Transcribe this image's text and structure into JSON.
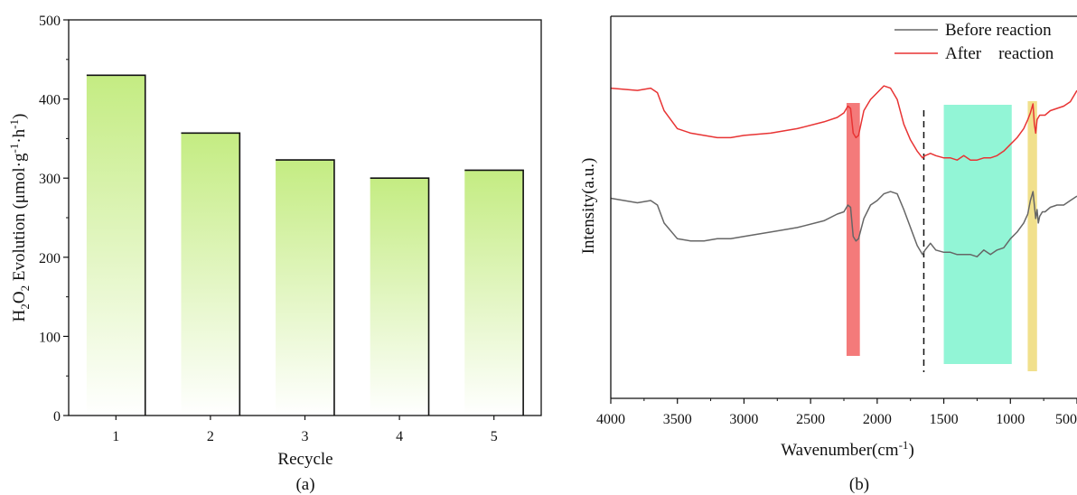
{
  "chart_data": [
    {
      "type": "bar",
      "panel_label": "(a)",
      "xlabel": "Recycle",
      "ylabel_parts": [
        "H",
        "2",
        "O",
        "2",
        " Evolution (μmol·g",
        "-1",
        "·h",
        "-1",
        ")"
      ],
      "categories": [
        "1",
        "2",
        "3",
        "4",
        "5"
      ],
      "values": [
        430,
        357,
        323,
        300,
        310
      ],
      "ylim": [
        0,
        500
      ],
      "yticks": [
        0,
        100,
        200,
        300,
        400,
        500
      ],
      "grid": false,
      "bar_gradient": {
        "top": "#c4ec82",
        "bottom": "#ffffff"
      }
    },
    {
      "type": "line",
      "panel_label": "(b)",
      "xlabel_parts": [
        "Wavenumber(cm",
        "-1",
        ")"
      ],
      "ylabel": "Intensity(a.u.)",
      "xlim": [
        4000,
        500
      ],
      "xticks": [
        4000,
        3500,
        3000,
        2500,
        2000,
        1500,
        1000,
        500
      ],
      "xtick_labels": [
        "4000",
        "3500",
        "3000",
        "2500",
        "2000",
        "1500",
        "1000",
        "500"
      ],
      "y_ticks_shown": false,
      "legend_position": "top-right",
      "series": [
        {
          "name": "Before reaction",
          "color": "#666666",
          "x": [
            4000,
            3800,
            3700,
            3650,
            3600,
            3500,
            3400,
            3300,
            3200,
            3100,
            3000,
            2800,
            2600,
            2400,
            2300,
            2250,
            2220,
            2200,
            2180,
            2160,
            2140,
            2100,
            2050,
            2000,
            1950,
            1900,
            1850,
            1800,
            1750,
            1700,
            1660,
            1640,
            1600,
            1560,
            1500,
            1450,
            1400,
            1350,
            1300,
            1250,
            1200,
            1150,
            1100,
            1050,
            1000,
            950,
            900,
            870,
            850,
            830,
            820,
            810,
            800,
            790,
            780,
            760,
            740,
            700,
            650,
            600,
            550,
            500
          ],
          "y": [
            0.89,
            0.87,
            0.88,
            0.86,
            0.78,
            0.71,
            0.7,
            0.7,
            0.71,
            0.71,
            0.72,
            0.74,
            0.76,
            0.79,
            0.82,
            0.83,
            0.86,
            0.85,
            0.72,
            0.7,
            0.71,
            0.8,
            0.86,
            0.88,
            0.91,
            0.92,
            0.91,
            0.84,
            0.76,
            0.68,
            0.64,
            0.66,
            0.69,
            0.66,
            0.65,
            0.65,
            0.64,
            0.64,
            0.64,
            0.63,
            0.66,
            0.64,
            0.66,
            0.67,
            0.71,
            0.74,
            0.78,
            0.82,
            0.88,
            0.92,
            0.86,
            0.8,
            0.84,
            0.78,
            0.81,
            0.83,
            0.83,
            0.85,
            0.86,
            0.86,
            0.88,
            0.9
          ]
        },
        {
          "name": "After    reaction",
          "color": "#e83434",
          "x": [
            4000,
            3800,
            3700,
            3650,
            3600,
            3500,
            3400,
            3300,
            3200,
            3100,
            3000,
            2800,
            2600,
            2400,
            2300,
            2250,
            2220,
            2200,
            2180,
            2160,
            2140,
            2100,
            2050,
            2000,
            1950,
            1900,
            1850,
            1800,
            1750,
            1700,
            1660,
            1640,
            1600,
            1560,
            1500,
            1450,
            1400,
            1350,
            1300,
            1250,
            1200,
            1150,
            1100,
            1050,
            1000,
            950,
            900,
            870,
            850,
            830,
            820,
            810,
            800,
            790,
            780,
            760,
            740,
            700,
            650,
            600,
            550,
            500
          ],
          "y": [
            1.38,
            1.37,
            1.38,
            1.36,
            1.28,
            1.2,
            1.18,
            1.17,
            1.16,
            1.16,
            1.17,
            1.18,
            1.2,
            1.23,
            1.25,
            1.27,
            1.3,
            1.29,
            1.18,
            1.16,
            1.17,
            1.28,
            1.33,
            1.36,
            1.39,
            1.38,
            1.33,
            1.22,
            1.15,
            1.1,
            1.07,
            1.08,
            1.09,
            1.08,
            1.07,
            1.07,
            1.06,
            1.08,
            1.06,
            1.06,
            1.07,
            1.07,
            1.08,
            1.1,
            1.13,
            1.16,
            1.2,
            1.24,
            1.27,
            1.31,
            1.22,
            1.18,
            1.24,
            1.25,
            1.26,
            1.26,
            1.26,
            1.28,
            1.29,
            1.3,
            1.32,
            1.37
          ]
        }
      ],
      "highlight_bands": [
        {
          "x_range": [
            2230,
            2130
          ],
          "color": "#f47a7a"
        },
        {
          "x_range": [
            1500,
            990
          ],
          "color": "#92f5d6"
        },
        {
          "x_range": [
            870,
            800
          ],
          "color": "#f1e08c"
        }
      ],
      "dashed_line_x": 1650
    }
  ]
}
